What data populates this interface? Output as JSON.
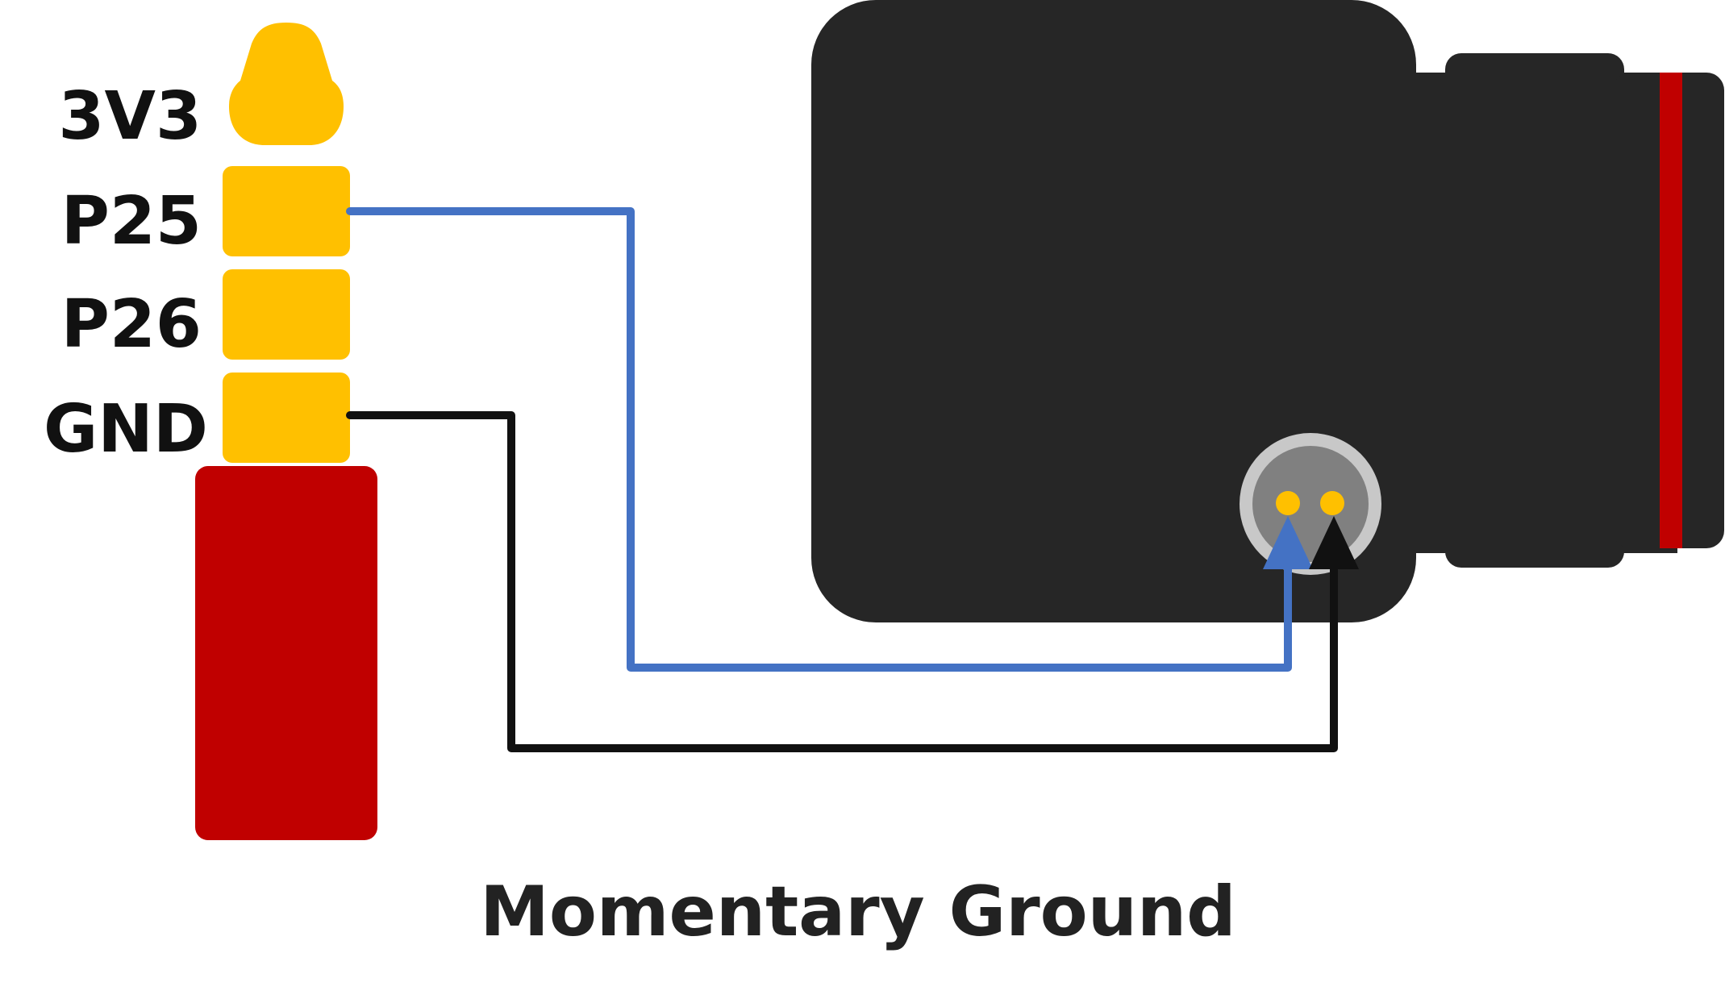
{
  "pins": {
    "vcc": "3V3",
    "p25": "P25",
    "p26": "P26",
    "gnd": "GND"
  },
  "caption": "Momentary Ground",
  "colors": {
    "plug_contact": "#FFC000",
    "plug_body": "#C00000",
    "switch_body": "#262626",
    "switch_band": "#C00000",
    "switch_ring": "#C8C8C8",
    "switch_face": "#808080",
    "switch_pin": "#FFC000",
    "signal_wire": "#4472C4",
    "ground_wire": "#111111"
  },
  "icons": {
    "plug": "trrs-plug-icon",
    "switch": "momentary-pushbutton-icon"
  }
}
